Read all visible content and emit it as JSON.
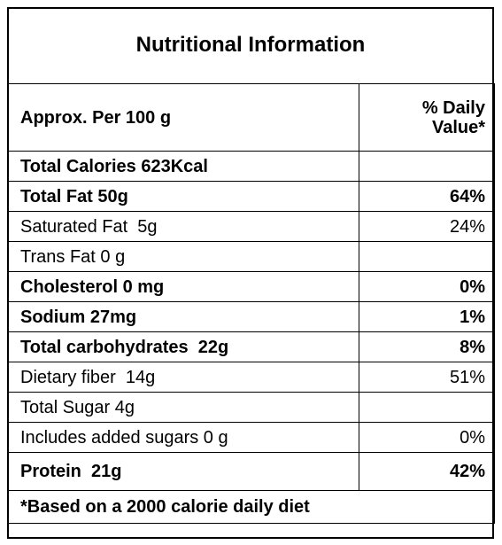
{
  "title": "Nutritional Information",
  "header_row": {
    "serving": "Approx. Per 100 g",
    "daily_value_line1": "% Daily",
    "daily_value_line2": "Value*"
  },
  "rows": [
    {
      "label": "Total Calories 623Kcal",
      "dv": "",
      "bold": true
    },
    {
      "label": "Total Fat 50g",
      "dv": "64%",
      "bold": true
    },
    {
      "label": "Saturated Fat  5g",
      "dv": "24%",
      "bold": false
    },
    {
      "label": "Trans Fat 0 g",
      "dv": "",
      "bold": false
    },
    {
      "label": "Cholesterol 0 mg",
      "dv": "0%",
      "bold": true
    },
    {
      "label": "Sodium 27mg",
      "dv": "1%",
      "bold": true
    },
    {
      "label": "Total carbohydrates  22g",
      "dv": "8%",
      "bold": true
    },
    {
      "label": "Dietary fiber  14g",
      "dv": "51%",
      "bold": false
    },
    {
      "label": "Total Sugar 4g",
      "dv": "",
      "bold": false
    },
    {
      "label": "Includes added sugars 0 g",
      "dv": "0%",
      "bold": false
    },
    {
      "label": "Protein  21g",
      "dv": "42%",
      "bold": true
    }
  ],
  "footnote": "*Based on a 2000 calorie daily diet"
}
